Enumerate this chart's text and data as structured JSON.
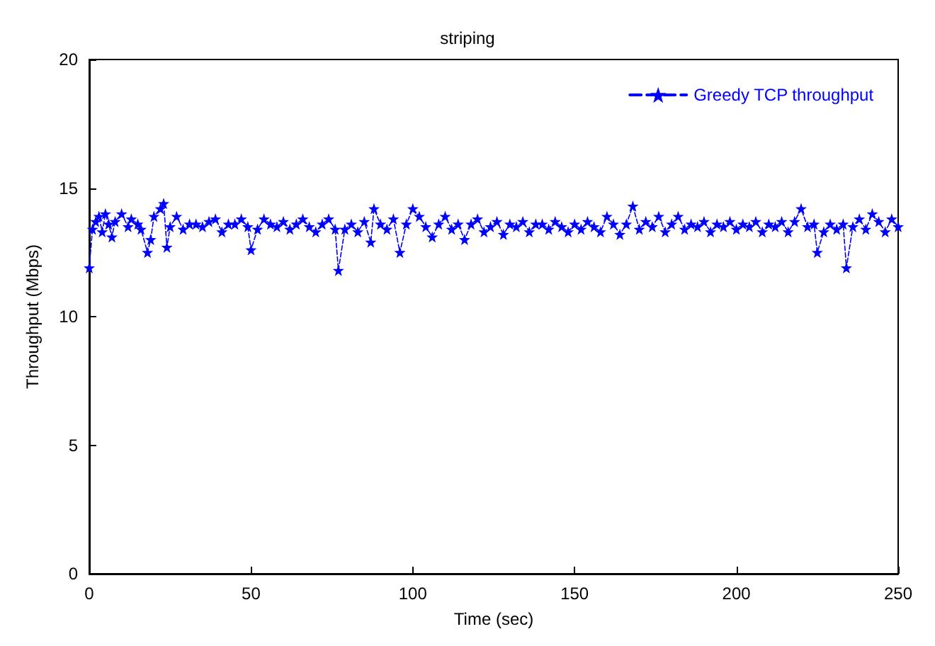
{
  "chart_data": {
    "type": "line",
    "title": "striping",
    "xlabel": "Time (sec)",
    "ylabel": "Throughput (Mbps)",
    "xlim": [
      0,
      250
    ],
    "xticks": [
      0,
      50,
      100,
      150,
      200,
      250
    ],
    "ylim": [
      0,
      20
    ],
    "yticks": [
      0,
      5,
      10,
      15,
      20
    ],
    "grid": false,
    "legend": "top right",
    "marker": "star",
    "line_style": "dashed",
    "series": [
      {
        "name": "Greedy TCP throughput",
        "color": "#0000ff",
        "x": [
          0,
          1,
          2,
          3,
          4,
          5,
          6,
          7,
          8,
          10,
          12,
          13,
          15,
          16,
          18,
          19,
          20,
          22,
          23,
          24,
          25,
          27,
          29,
          31,
          33,
          35,
          37,
          39,
          41,
          43,
          45,
          47,
          49,
          50,
          52,
          54,
          56,
          58,
          60,
          62,
          64,
          66,
          68,
          70,
          72,
          74,
          76,
          77,
          79,
          81,
          83,
          85,
          87,
          88,
          90,
          92,
          94,
          96,
          98,
          100,
          102,
          104,
          106,
          108,
          110,
          112,
          114,
          116,
          118,
          120,
          122,
          124,
          126,
          128,
          130,
          132,
          134,
          136,
          138,
          140,
          142,
          144,
          146,
          148,
          150,
          152,
          154,
          156,
          158,
          160,
          162,
          164,
          166,
          168,
          170,
          172,
          174,
          176,
          178,
          180,
          182,
          184,
          186,
          188,
          190,
          192,
          194,
          196,
          198,
          200,
          202,
          204,
          206,
          208,
          210,
          212,
          214,
          216,
          218,
          220,
          222,
          224,
          225,
          227,
          229,
          231,
          233,
          234,
          236,
          238,
          240,
          242,
          244,
          246,
          248,
          250
        ],
        "values": [
          11.9,
          13.4,
          13.7,
          13.9,
          13.3,
          14.0,
          13.6,
          13.1,
          13.7,
          14.0,
          13.5,
          13.8,
          13.6,
          13.4,
          12.5,
          13.0,
          13.9,
          14.2,
          14.4,
          12.7,
          13.5,
          13.9,
          13.4,
          13.6,
          13.6,
          13.5,
          13.7,
          13.8,
          13.3,
          13.6,
          13.6,
          13.8,
          13.5,
          12.6,
          13.4,
          13.8,
          13.6,
          13.5,
          13.7,
          13.4,
          13.6,
          13.8,
          13.5,
          13.3,
          13.6,
          13.8,
          13.4,
          11.8,
          13.4,
          13.6,
          13.3,
          13.7,
          12.9,
          14.2,
          13.6,
          13.4,
          13.8,
          12.5,
          13.6,
          14.2,
          13.9,
          13.5,
          13.1,
          13.6,
          13.9,
          13.4,
          13.6,
          13.0,
          13.6,
          13.8,
          13.3,
          13.5,
          13.7,
          13.2,
          13.6,
          13.5,
          13.7,
          13.3,
          13.6,
          13.6,
          13.4,
          13.7,
          13.5,
          13.3,
          13.6,
          13.4,
          13.7,
          13.5,
          13.3,
          13.9,
          13.6,
          13.2,
          13.6,
          14.3,
          13.4,
          13.7,
          13.5,
          13.9,
          13.3,
          13.6,
          13.9,
          13.4,
          13.6,
          13.5,
          13.7,
          13.3,
          13.6,
          13.5,
          13.7,
          13.4,
          13.6,
          13.5,
          13.7,
          13.3,
          13.6,
          13.5,
          13.7,
          13.3,
          13.7,
          14.2,
          13.5,
          13.6,
          12.5,
          13.3,
          13.6,
          13.4,
          13.6,
          11.9,
          13.5,
          13.8,
          13.4,
          14.0,
          13.7,
          13.3,
          13.8,
          13.5
        ]
      }
    ]
  }
}
